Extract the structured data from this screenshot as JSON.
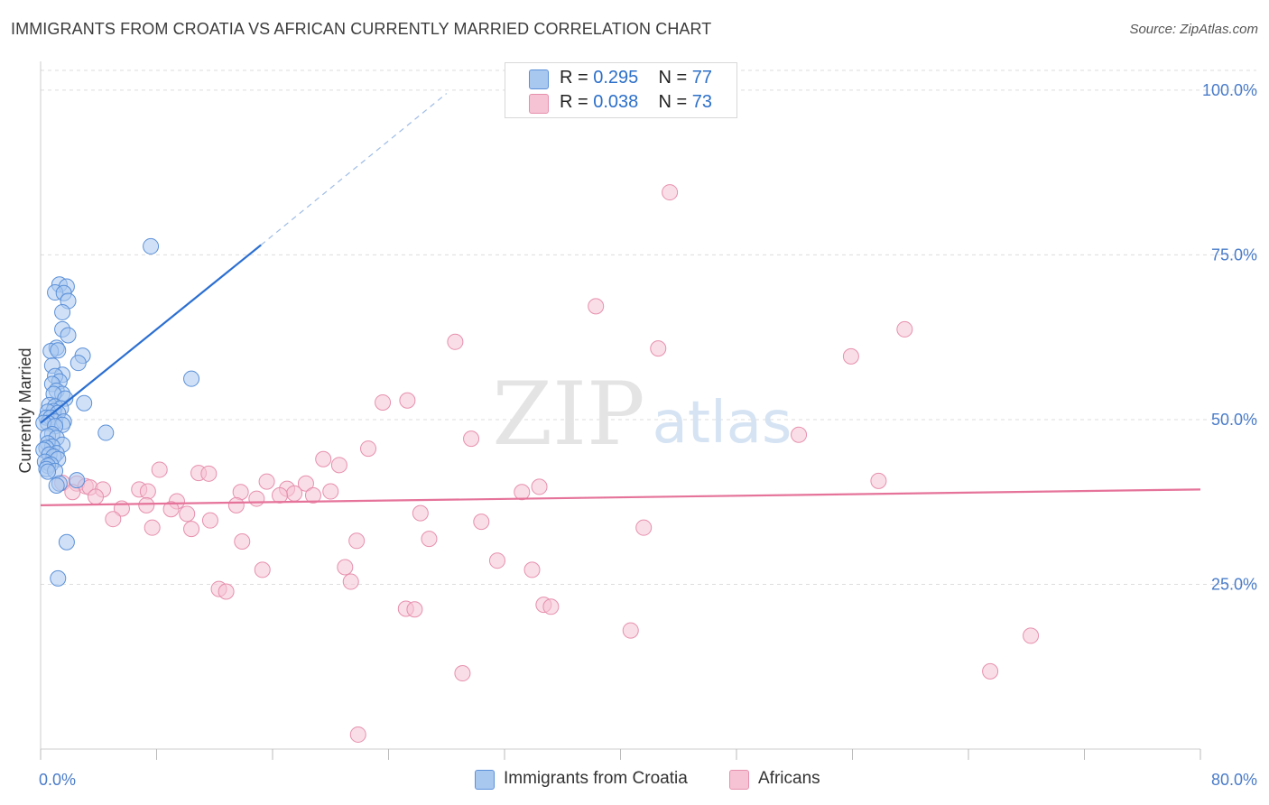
{
  "title": "IMMIGRANTS FROM CROATIA VS AFRICAN CURRENTLY MARRIED CORRELATION CHART",
  "source": "Source: ZipAtlas.com",
  "watermark": {
    "zip": "ZIP",
    "atlas": "atlas"
  },
  "legend": {
    "r_label": "R = ",
    "n_label": "N = ",
    "series": [
      {
        "name": "Immigrants from Croatia",
        "r": "0.295",
        "n": "77"
      },
      {
        "name": "Africans",
        "r": "0.038",
        "n": "73"
      }
    ]
  },
  "colors": {
    "blue_fill": "#a9c8f0",
    "blue_stroke": "#5b90d8",
    "blue_line": "#2c6fd1",
    "pink_fill": "#f6c3d4",
    "pink_stroke": "#e690ae",
    "pink_line": "#e5739a",
    "tick_text": "#4a7cc9",
    "grid": "#dddddd"
  },
  "chart_data": {
    "type": "scatter",
    "title": "IMMIGRANTS FROM CROATIA VS AFRICAN CURRENTLY MARRIED CORRELATION CHART",
    "xlabel": "",
    "ylabel": "Currently Married",
    "xlim": [
      0,
      80
    ],
    "ylim": [
      0,
      103
    ],
    "y_ticks": [
      25,
      50,
      75,
      100
    ],
    "y_tick_labels": [
      "25.0%",
      "50.0%",
      "75.0%",
      "100.0%"
    ],
    "x_tick_labels": [
      "0.0%",
      "80.0%"
    ],
    "series": [
      {
        "name": "Immigrants from Croatia",
        "color": "blue",
        "trend": {
          "x0": 0,
          "y0": 49.5,
          "x1": 15.2,
          "y1": 76.5,
          "dash_to_x": 28,
          "dash_to_y": 99.5
        },
        "points": [
          [
            7.6,
            76.3
          ],
          [
            1.3,
            70.5
          ],
          [
            1.8,
            70.2
          ],
          [
            1.0,
            69.3
          ],
          [
            1.6,
            69.2
          ],
          [
            1.9,
            68.0
          ],
          [
            1.5,
            66.3
          ],
          [
            1.5,
            63.7
          ],
          [
            1.9,
            62.8
          ],
          [
            1.1,
            60.9
          ],
          [
            0.7,
            60.4
          ],
          [
            1.2,
            60.5
          ],
          [
            2.9,
            59.7
          ],
          [
            2.6,
            58.6
          ],
          [
            0.8,
            58.2
          ],
          [
            1.5,
            56.8
          ],
          [
            1.0,
            56.6
          ],
          [
            10.4,
            56.2
          ],
          [
            1.3,
            55.8
          ],
          [
            0.8,
            55.4
          ],
          [
            1.1,
            54.4
          ],
          [
            1.5,
            53.9
          ],
          [
            0.9,
            53.9
          ],
          [
            1.7,
            53.2
          ],
          [
            3.0,
            52.5
          ],
          [
            0.6,
            52.2
          ],
          [
            1.0,
            52.0
          ],
          [
            1.4,
            51.7
          ],
          [
            0.9,
            51.3
          ],
          [
            0.5,
            51.2
          ],
          [
            1.2,
            51.0
          ],
          [
            0.4,
            50.3
          ],
          [
            0.7,
            50.3
          ],
          [
            1.0,
            49.7
          ],
          [
            1.6,
            49.7
          ],
          [
            0.5,
            49.5
          ],
          [
            0.2,
            49.5
          ],
          [
            1.5,
            49.2
          ],
          [
            1.0,
            49.0
          ],
          [
            4.5,
            48.0
          ],
          [
            0.8,
            47.8
          ],
          [
            0.5,
            47.5
          ],
          [
            1.1,
            47.2
          ],
          [
            0.5,
            46.4
          ],
          [
            1.5,
            46.2
          ],
          [
            0.8,
            45.9
          ],
          [
            0.4,
            45.7
          ],
          [
            0.2,
            45.4
          ],
          [
            1.1,
            44.9
          ],
          [
            0.6,
            44.7
          ],
          [
            0.9,
            44.4
          ],
          [
            1.2,
            44.0
          ],
          [
            0.3,
            43.6
          ],
          [
            0.7,
            43.2
          ],
          [
            0.5,
            43.0
          ],
          [
            0.4,
            42.5
          ],
          [
            1.0,
            42.2
          ],
          [
            0.5,
            42.1
          ],
          [
            2.5,
            40.8
          ],
          [
            1.3,
            40.3
          ],
          [
            1.1,
            40.0
          ],
          [
            1.8,
            31.4
          ],
          [
            1.2,
            25.9
          ]
        ]
      },
      {
        "name": "Africans",
        "color": "pink",
        "trend": {
          "x0": 0,
          "y0": 37.0,
          "x1": 80,
          "y1": 39.4
        },
        "points": [
          [
            43.4,
            84.5
          ],
          [
            38.3,
            67.2
          ],
          [
            59.6,
            63.7
          ],
          [
            28.6,
            61.8
          ],
          [
            42.6,
            60.8
          ],
          [
            55.9,
            59.6
          ],
          [
            25.3,
            52.9
          ],
          [
            23.6,
            52.6
          ],
          [
            52.3,
            47.7
          ],
          [
            29.7,
            47.1
          ],
          [
            22.6,
            45.6
          ],
          [
            19.5,
            44.0
          ],
          [
            20.6,
            43.1
          ],
          [
            8.2,
            42.4
          ],
          [
            10.9,
            41.9
          ],
          [
            11.6,
            41.8
          ],
          [
            57.8,
            40.7
          ],
          [
            15.6,
            40.6
          ],
          [
            18.3,
            40.3
          ],
          [
            1.5,
            40.4
          ],
          [
            2.5,
            40.3
          ],
          [
            3.1,
            39.9
          ],
          [
            3.4,
            39.7
          ],
          [
            34.4,
            39.8
          ],
          [
            17.0,
            39.5
          ],
          [
            6.8,
            39.4
          ],
          [
            33.2,
            39.0
          ],
          [
            20.0,
            39.1
          ],
          [
            4.3,
            39.4
          ],
          [
            7.4,
            39.1
          ],
          [
            2.2,
            39.0
          ],
          [
            13.8,
            39.0
          ],
          [
            17.5,
            38.8
          ],
          [
            18.8,
            38.5
          ],
          [
            16.5,
            38.5
          ],
          [
            3.8,
            38.3
          ],
          [
            14.9,
            38.0
          ],
          [
            9.4,
            37.6
          ],
          [
            7.3,
            37.0
          ],
          [
            13.5,
            37.0
          ],
          [
            9.0,
            36.4
          ],
          [
            5.6,
            36.5
          ],
          [
            10.1,
            35.7
          ],
          [
            26.2,
            35.8
          ],
          [
            11.7,
            34.7
          ],
          [
            5.0,
            34.9
          ],
          [
            30.4,
            34.5
          ],
          [
            7.7,
            33.6
          ],
          [
            10.4,
            33.4
          ],
          [
            41.6,
            33.6
          ],
          [
            26.8,
            31.9
          ],
          [
            13.9,
            31.5
          ],
          [
            21.8,
            31.6
          ],
          [
            31.5,
            28.6
          ],
          [
            21.0,
            27.6
          ],
          [
            33.9,
            27.2
          ],
          [
            15.3,
            27.2
          ],
          [
            21.4,
            25.4
          ],
          [
            12.3,
            24.3
          ],
          [
            12.8,
            23.9
          ],
          [
            34.7,
            21.9
          ],
          [
            35.2,
            21.6
          ],
          [
            25.2,
            21.3
          ],
          [
            25.8,
            21.2
          ],
          [
            40.7,
            18.0
          ],
          [
            68.3,
            17.2
          ],
          [
            29.1,
            11.5
          ],
          [
            65.5,
            11.8
          ],
          [
            21.9,
            2.2
          ]
        ]
      }
    ]
  }
}
